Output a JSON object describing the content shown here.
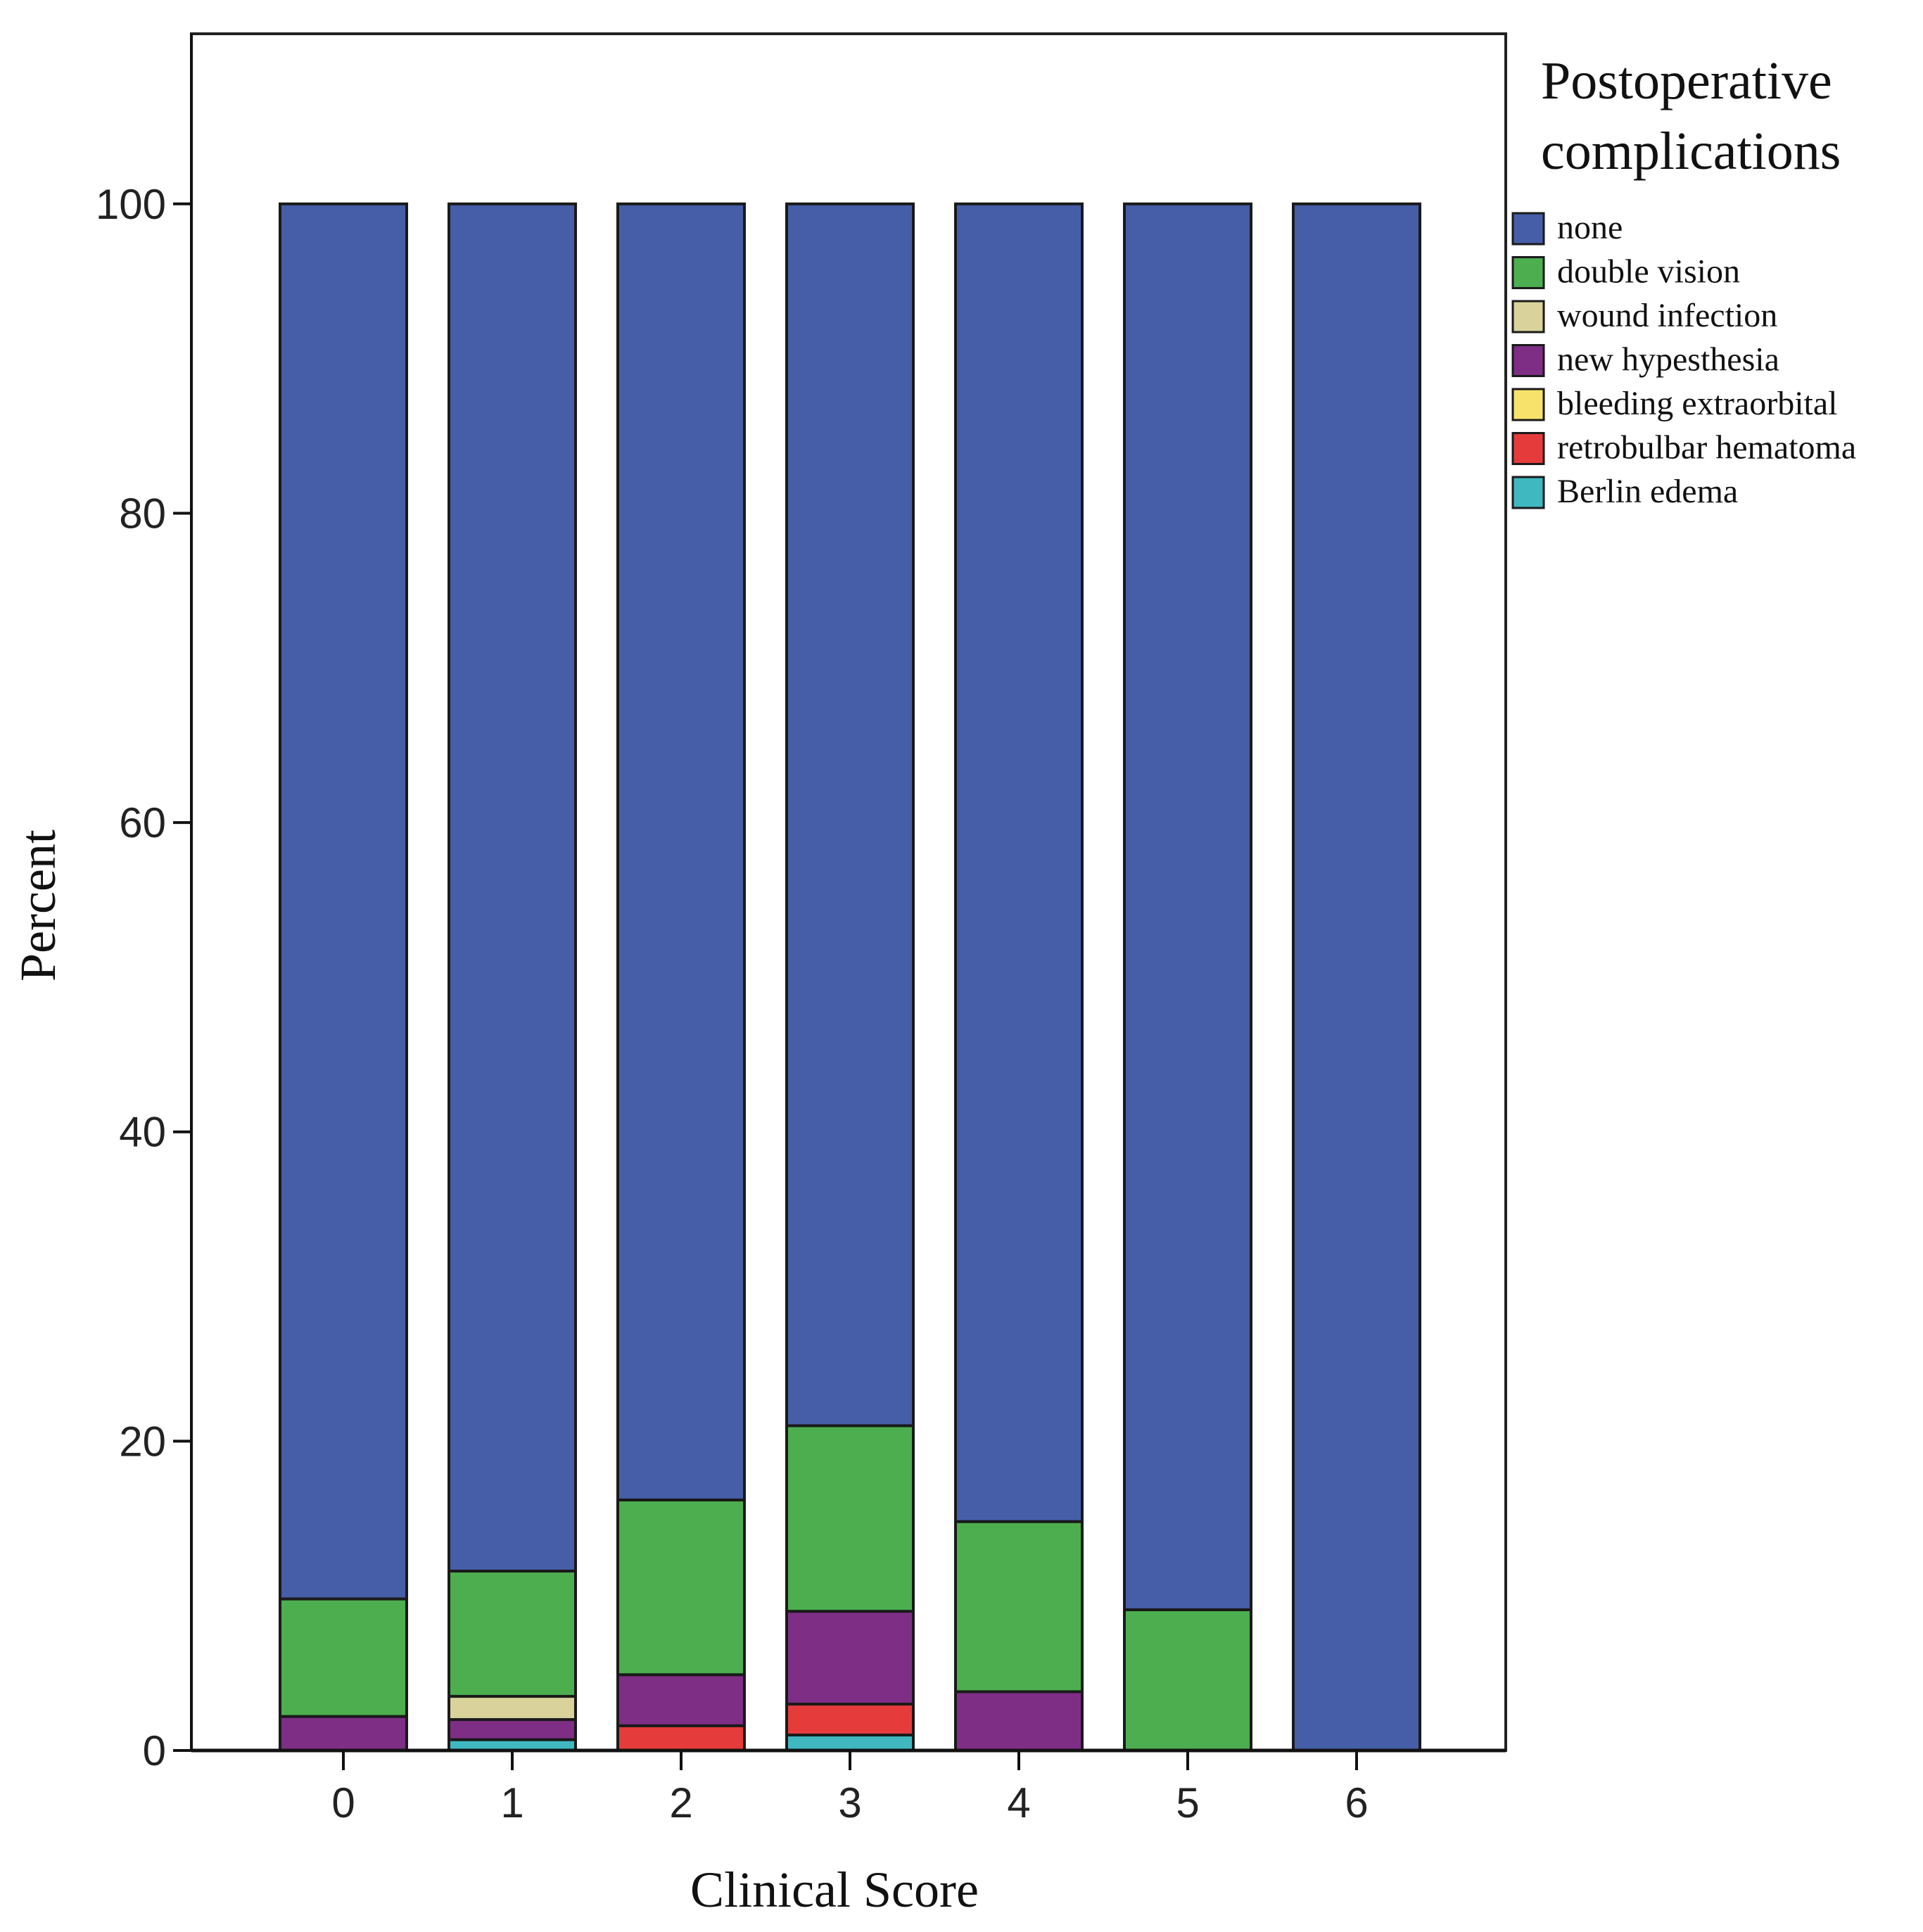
{
  "chart_data": {
    "type": "bar",
    "stacked": true,
    "normalized_percent": true,
    "title": "",
    "xlabel": "Clinical Score",
    "ylabel": "Percent",
    "categories": [
      "0",
      "1",
      "2",
      "3",
      "4",
      "5",
      "6"
    ],
    "ylim": [
      0,
      111
    ],
    "yticks": [
      0,
      20,
      40,
      60,
      80,
      100
    ],
    "grid": false,
    "legend": {
      "title_lines": [
        "Postoperative",
        "complications"
      ],
      "position": "top-right, outside plot"
    },
    "series": [
      {
        "name": "Berlin edema",
        "color": "#40B8C0",
        "values": [
          0,
          0.7,
          0,
          1.0,
          0,
          0,
          0
        ]
      },
      {
        "name": "retrobulbar hematoma",
        "color": "#E63B3B",
        "values": [
          0,
          0,
          1.6,
          2.0,
          0,
          0,
          0
        ]
      },
      {
        "name": "bleeding extraorbital",
        "color": "#F7E36B",
        "values": [
          0,
          0,
          0,
          0,
          0,
          0,
          0
        ]
      },
      {
        "name": "new hypesthesia",
        "color": "#7E2E85",
        "values": [
          2.2,
          1.3,
          3.3,
          6.0,
          3.8,
          0,
          0
        ]
      },
      {
        "name": "wound infection",
        "color": "#D9D29A",
        "values": [
          0,
          1.5,
          0,
          0,
          0,
          0,
          0
        ]
      },
      {
        "name": "double vision",
        "color": "#4CAE4F",
        "values": [
          7.6,
          8.1,
          11.3,
          12.0,
          11.0,
          9.1,
          0
        ]
      },
      {
        "name": "none",
        "color": "#465EA8",
        "values": [
          90.2,
          88.4,
          83.8,
          79.0,
          85.2,
          90.9,
          100
        ]
      }
    ],
    "legend_order": [
      "none",
      "double vision",
      "wound infection",
      "new hypesthesia",
      "bleeding extraorbital",
      "retrobulbar hematoma",
      "Berlin edema"
    ]
  }
}
